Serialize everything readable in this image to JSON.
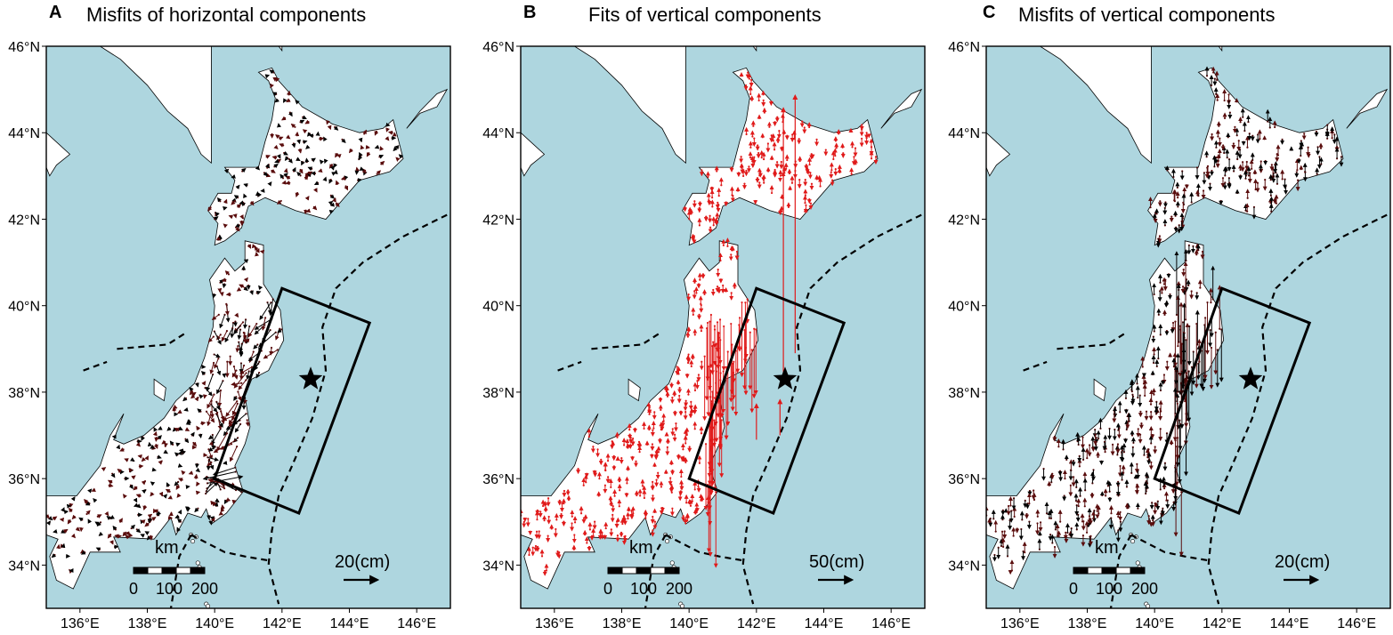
{
  "panels": [
    {
      "letter": "A",
      "title": "Misfits of horizontal components",
      "scale_label": "20(cm)",
      "arrow_color": "#5a0d0d",
      "secondary_color": "#000000",
      "vectors": "horizontal"
    },
    {
      "letter": "B",
      "title": "Fits of vertical components",
      "scale_label": "50(cm)",
      "arrow_color": "#e01a1a",
      "secondary_color": "#000000",
      "vectors": "vertical-fit"
    },
    {
      "letter": "C",
      "title": "Misfits of vertical components",
      "scale_label": "20(cm)",
      "arrow_color": "#5a0d0d",
      "secondary_color": "#000000",
      "vectors": "vertical-misfit"
    }
  ],
  "axes": {
    "lat_ticks": [
      "46°N",
      "44°N",
      "42°N",
      "40°N",
      "38°N",
      "36°N",
      "34°N"
    ],
    "lon_ticks": [
      "136°E",
      "138°E",
      "140°E",
      "142°E",
      "144°E",
      "146°E"
    ]
  },
  "map": {
    "ocean_color": "#aed6df",
    "land_color": "#ffffff",
    "epicenter_symbol": "star"
  },
  "scalebar": {
    "unit": "km",
    "ticks": [
      "0",
      "100",
      "200"
    ]
  }
}
